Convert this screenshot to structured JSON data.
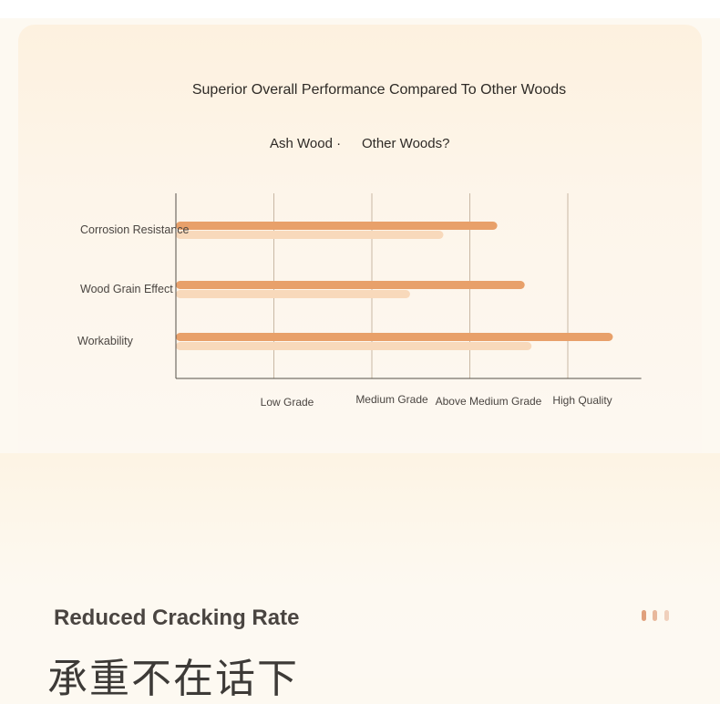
{
  "chart_data": {
    "type": "bar",
    "orientation": "horizontal",
    "title": "Superior Overall Performance Compared To Other Woods",
    "categories": [
      "Corrosion Resistance",
      "Wood Grain Effect",
      "Workability"
    ],
    "x_tick_labels": [
      "Low Grade",
      "Medium Grade",
      "Above Medium Grade",
      "High Quality"
    ],
    "xlim": [
      0,
      4.75
    ],
    "series": [
      {
        "name": "Ash Wood ·",
        "color": "#e8a06a",
        "values": [
          3.28,
          3.56,
          4.46
        ]
      },
      {
        "name": "Other Woods?",
        "color": "#f8d9bb",
        "values": [
          2.73,
          2.39,
          3.63
        ]
      }
    ],
    "grid": "vertical",
    "legend_position": "top"
  },
  "section": {
    "title": "Reduced Cracking Rate",
    "subtitle_cjk": "承重不在话下"
  },
  "pager": {
    "dot_colors": [
      "#e0a07c",
      "#e8b89c",
      "#f0d0bc"
    ]
  }
}
